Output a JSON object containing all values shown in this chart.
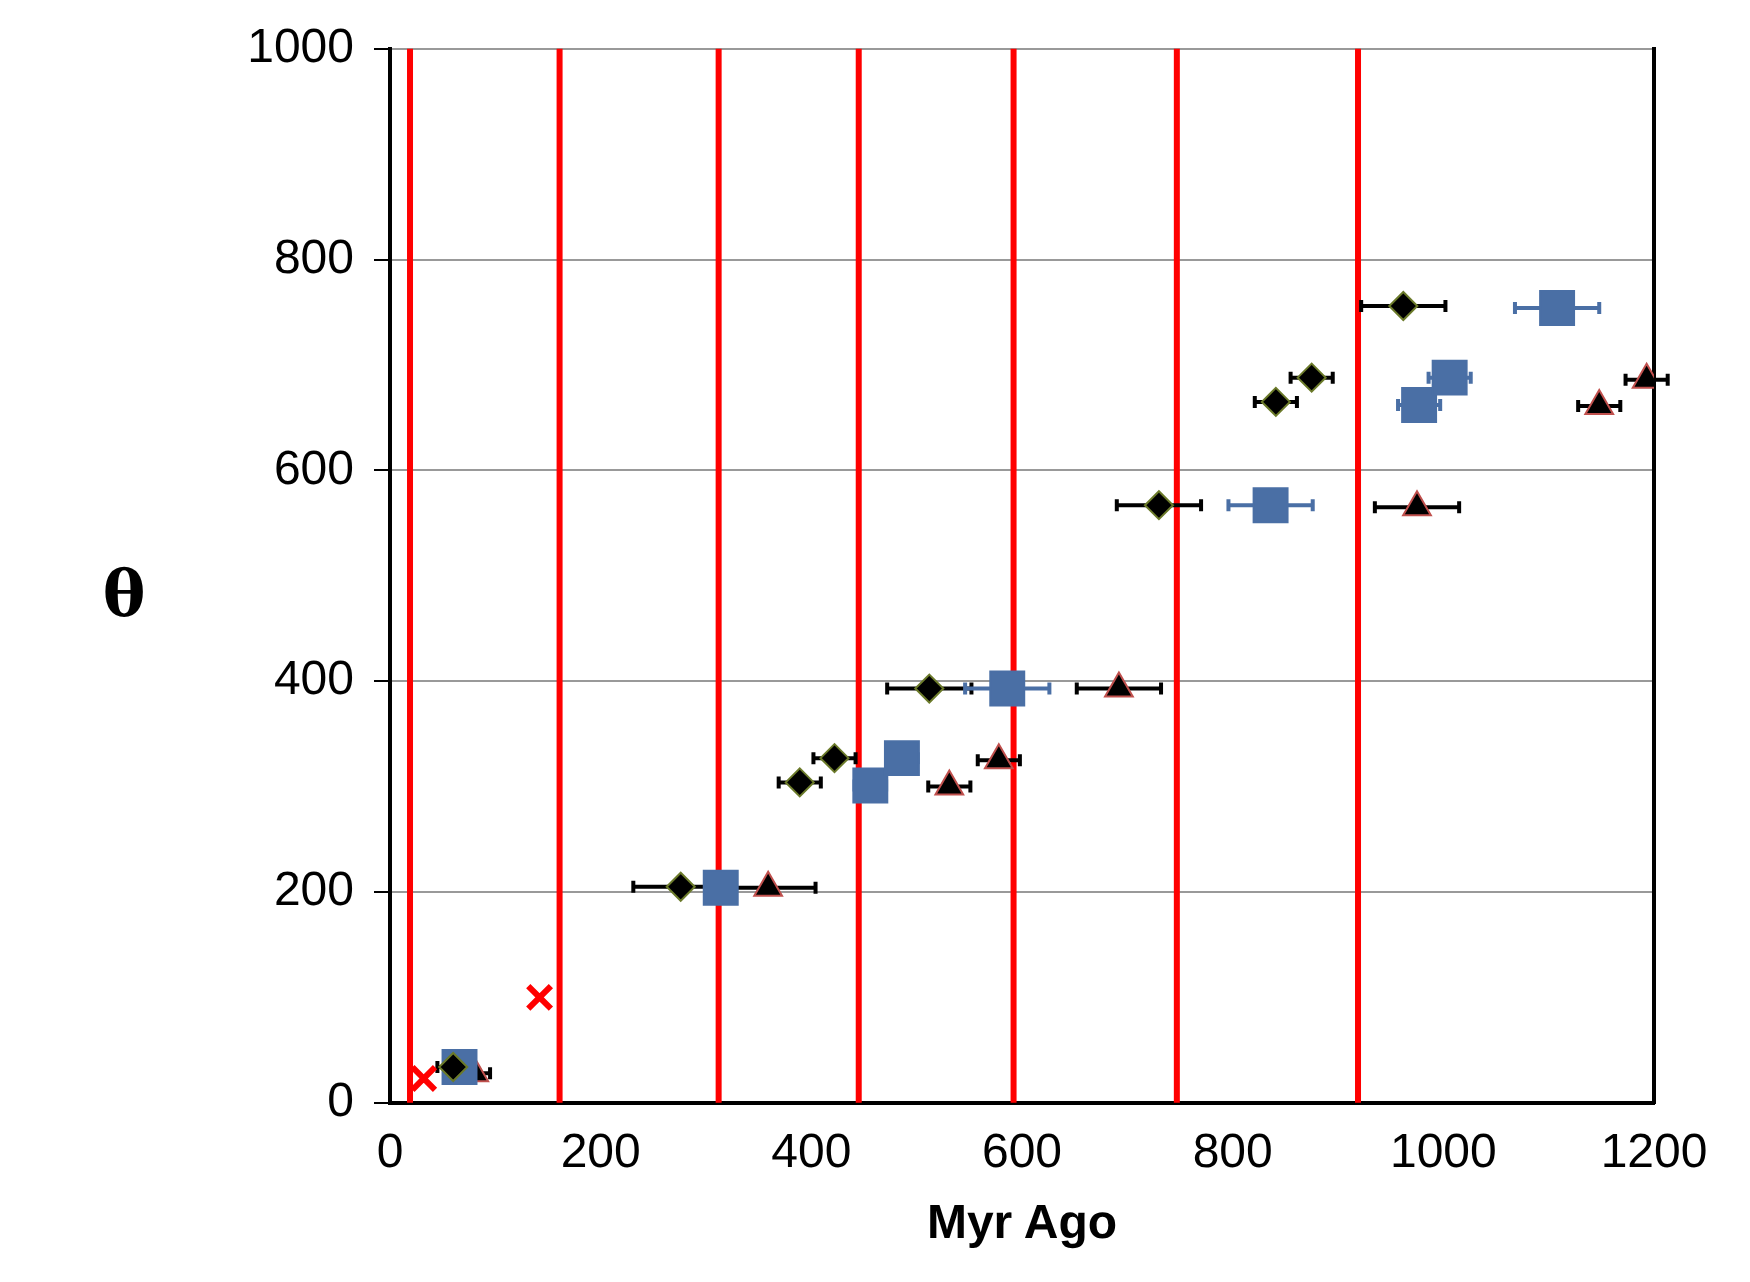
{
  "chart_data": {
    "type": "scatter",
    "xlabel": "Myr Ago",
    "ylabel": "θ",
    "xlim": [
      0,
      1200
    ],
    "ylim": [
      0,
      1000
    ],
    "xticks": [
      0,
      200,
      400,
      600,
      800,
      1000,
      1200
    ],
    "yticks": [
      0,
      200,
      400,
      600,
      800,
      1000
    ],
    "grid": "y",
    "legend": false,
    "series": [
      {
        "color": "#000000",
        "marker": "diamond",
        "x": [
          60,
          276,
          389,
          422,
          512,
          730,
          841,
          875,
          962
        ],
        "values": [
          34,
          205,
          304,
          327,
          393,
          567,
          665,
          688,
          756
        ],
        "xerrors": [
          15,
          45,
          20,
          20,
          40,
          40,
          20,
          20,
          40
        ]
      },
      {
        "color": "#4a6fa5",
        "marker": "square",
        "x": [
          66,
          314,
          456,
          486,
          586,
          836,
          977,
          1006,
          1108
        ],
        "values": [
          34,
          204,
          301,
          327,
          393,
          567,
          662,
          688,
          754
        ],
        "xerrors": [
          null,
          null,
          15,
          15,
          40,
          40,
          20,
          20,
          40
        ]
      },
      {
        "color": "#000000",
        "marker": "triangle",
        "x": [
          80,
          359,
          531,
          578,
          692,
          975,
          1148,
          1193
        ],
        "values": [
          28,
          204,
          300,
          325,
          393,
          565,
          661,
          686
        ],
        "xerrors": [
          15,
          45,
          20,
          20,
          40,
          40,
          20,
          20
        ]
      },
      {
        "color": "#ff0000",
        "marker": "cross",
        "x": [
          32,
          142
        ],
        "values": [
          23,
          100
        ]
      }
    ],
    "ref_lines": [
      {
        "axis": "x",
        "value": 19,
        "color": "#ff0000"
      },
      {
        "axis": "x",
        "value": 161,
        "color": "#ff0000"
      },
      {
        "axis": "x",
        "value": 312,
        "color": "#ff0000"
      },
      {
        "axis": "x",
        "value": 445,
        "color": "#ff0000"
      },
      {
        "axis": "x",
        "value": 592,
        "color": "#ff0000"
      },
      {
        "axis": "x",
        "value": 747,
        "color": "#ff0000"
      },
      {
        "axis": "x",
        "value": 919,
        "color": "#ff0000"
      }
    ]
  }
}
